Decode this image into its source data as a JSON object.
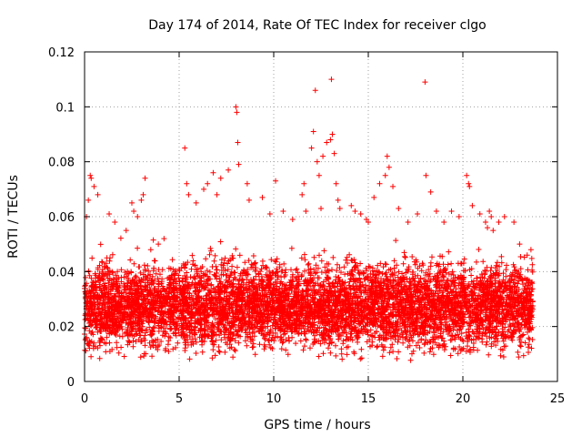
{
  "chart_data": {
    "type": "scatter",
    "title": "Day 174 of 2014, Rate Of TEC Index for receiver clgo",
    "xlabel": "GPS time / hours",
    "ylabel": "ROTI / TECUs",
    "xlim": [
      0,
      25
    ],
    "ylim": [
      0,
      0.12
    ],
    "x_ticks": [
      0,
      5,
      10,
      15,
      20,
      25
    ],
    "x_tick_labels": [
      "0",
      "5",
      "10",
      "15",
      "20",
      "25"
    ],
    "y_ticks": [
      0,
      0.02,
      0.04,
      0.06,
      0.08,
      0.1,
      0.12
    ],
    "y_tick_labels": [
      "0",
      "0.02",
      "0.04",
      "0.06",
      "0.08",
      "0.1",
      "0.12"
    ],
    "grid": true,
    "marker": "plus",
    "color": "#ff0000",
    "series": [
      {
        "name": "ROTI",
        "description_points": "Dense cloud of several thousand samples spanning 0 to 23.7 h, mostly between 0.005 and 0.045 TECU, with bursts listed below.",
        "x": [
          0.1,
          0.2,
          0.3,
          0.35,
          0.5,
          0.7,
          1.3,
          1.6,
          2.2,
          2.5,
          2.6,
          2.8,
          3.0,
          3.1,
          3.2,
          3.5,
          3.9,
          4.2,
          5.3,
          5.4,
          5.5,
          5.9,
          6.3,
          6.5,
          6.8,
          7.0,
          7.2,
          7.6,
          8.0,
          8.05,
          8.1,
          8.15,
          8.6,
          8.7,
          9.4,
          9.8,
          10.1,
          10.5,
          11.0,
          11.5,
          11.6,
          11.7,
          12.0,
          12.1,
          12.2,
          12.3,
          12.4,
          12.5,
          12.6,
          12.8,
          13.0,
          13.05,
          13.1,
          13.2,
          13.3,
          13.4,
          13.5,
          14.1,
          14.3,
          14.6,
          14.9,
          15.0,
          15.3,
          15.6,
          15.9,
          16.0,
          16.1,
          16.3,
          16.6,
          17.1,
          17.6,
          18.0,
          18.05,
          18.3,
          18.6,
          19.0,
          19.4,
          19.8,
          20.2,
          20.3,
          20.35,
          20.5,
          20.9,
          21.2,
          21.3,
          21.4,
          21.5,
          21.6,
          21.9,
          22.2,
          22.7,
          23.0,
          23.4,
          23.6
        ],
        "y": [
          0.06,
          0.066,
          0.075,
          0.074,
          0.071,
          0.068,
          0.061,
          0.058,
          0.055,
          0.065,
          0.062,
          0.06,
          0.066,
          0.068,
          0.074,
          0.048,
          0.05,
          0.052,
          0.085,
          0.072,
          0.068,
          0.065,
          0.07,
          0.072,
          0.076,
          0.068,
          0.074,
          0.077,
          0.1,
          0.098,
          0.087,
          0.079,
          0.072,
          0.066,
          0.067,
          0.061,
          0.073,
          0.062,
          0.059,
          0.068,
          0.072,
          0.062,
          0.085,
          0.091,
          0.106,
          0.08,
          0.075,
          0.063,
          0.082,
          0.087,
          0.088,
          0.11,
          0.09,
          0.083,
          0.072,
          0.066,
          0.063,
          0.064,
          0.062,
          0.061,
          0.059,
          0.058,
          0.067,
          0.072,
          0.075,
          0.082,
          0.078,
          0.071,
          0.063,
          0.058,
          0.061,
          0.109,
          0.075,
          0.069,
          0.062,
          0.058,
          0.062,
          0.06,
          0.075,
          0.072,
          0.071,
          0.064,
          0.061,
          0.058,
          0.056,
          0.062,
          0.06,
          0.055,
          0.058,
          0.06,
          0.058,
          0.05,
          0.046,
          0.048
        ]
      }
    ]
  }
}
